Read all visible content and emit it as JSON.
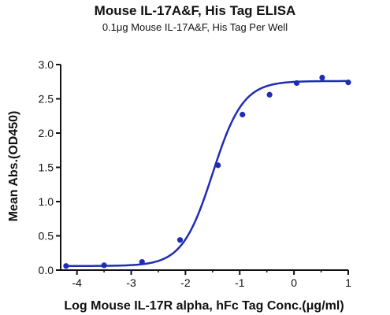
{
  "chart_data": {
    "type": "scatter",
    "title": "Mouse IL-17A&F, His Tag ELISA",
    "subtitle": "0.1μg Mouse IL-17A&F, His Tag Per Well",
    "xlabel": "Log Mouse IL-17R alpha, hFc Tag Conc.(μg/ml)",
    "ylabel": "Mean Abs.(OD450)",
    "xlim": [
      -4.3,
      1.0
    ],
    "ylim": [
      0,
      3.0
    ],
    "x_ticks": [
      -4,
      -3,
      -2,
      -1,
      0,
      1
    ],
    "y_ticks": [
      0.0,
      0.5,
      1.0,
      1.5,
      2.0,
      2.5,
      3.0
    ],
    "x_tick_labels": [
      "-4",
      "-3",
      "-2",
      "-1",
      "0",
      "1"
    ],
    "y_tick_labels": [
      "0.0",
      "0.5",
      "1.0",
      "1.5",
      "2.0",
      "2.5",
      "3.0"
    ],
    "series": [
      {
        "x": [
          -4.2,
          -3.5,
          -2.8,
          -2.1,
          -1.4,
          -0.95,
          -0.45,
          0.05,
          0.52,
          1.0
        ],
        "y": [
          0.06,
          0.07,
          0.12,
          0.44,
          1.53,
          2.27,
          2.56,
          2.73,
          2.81,
          2.74
        ],
        "fit": "4PL",
        "fit_params": {
          "bottom": 0.06,
          "top": 2.76,
          "logEC50": -1.5,
          "hill": 1.55
        }
      }
    ],
    "color": "#1f2db5",
    "grid": false,
    "legend": "none"
  }
}
